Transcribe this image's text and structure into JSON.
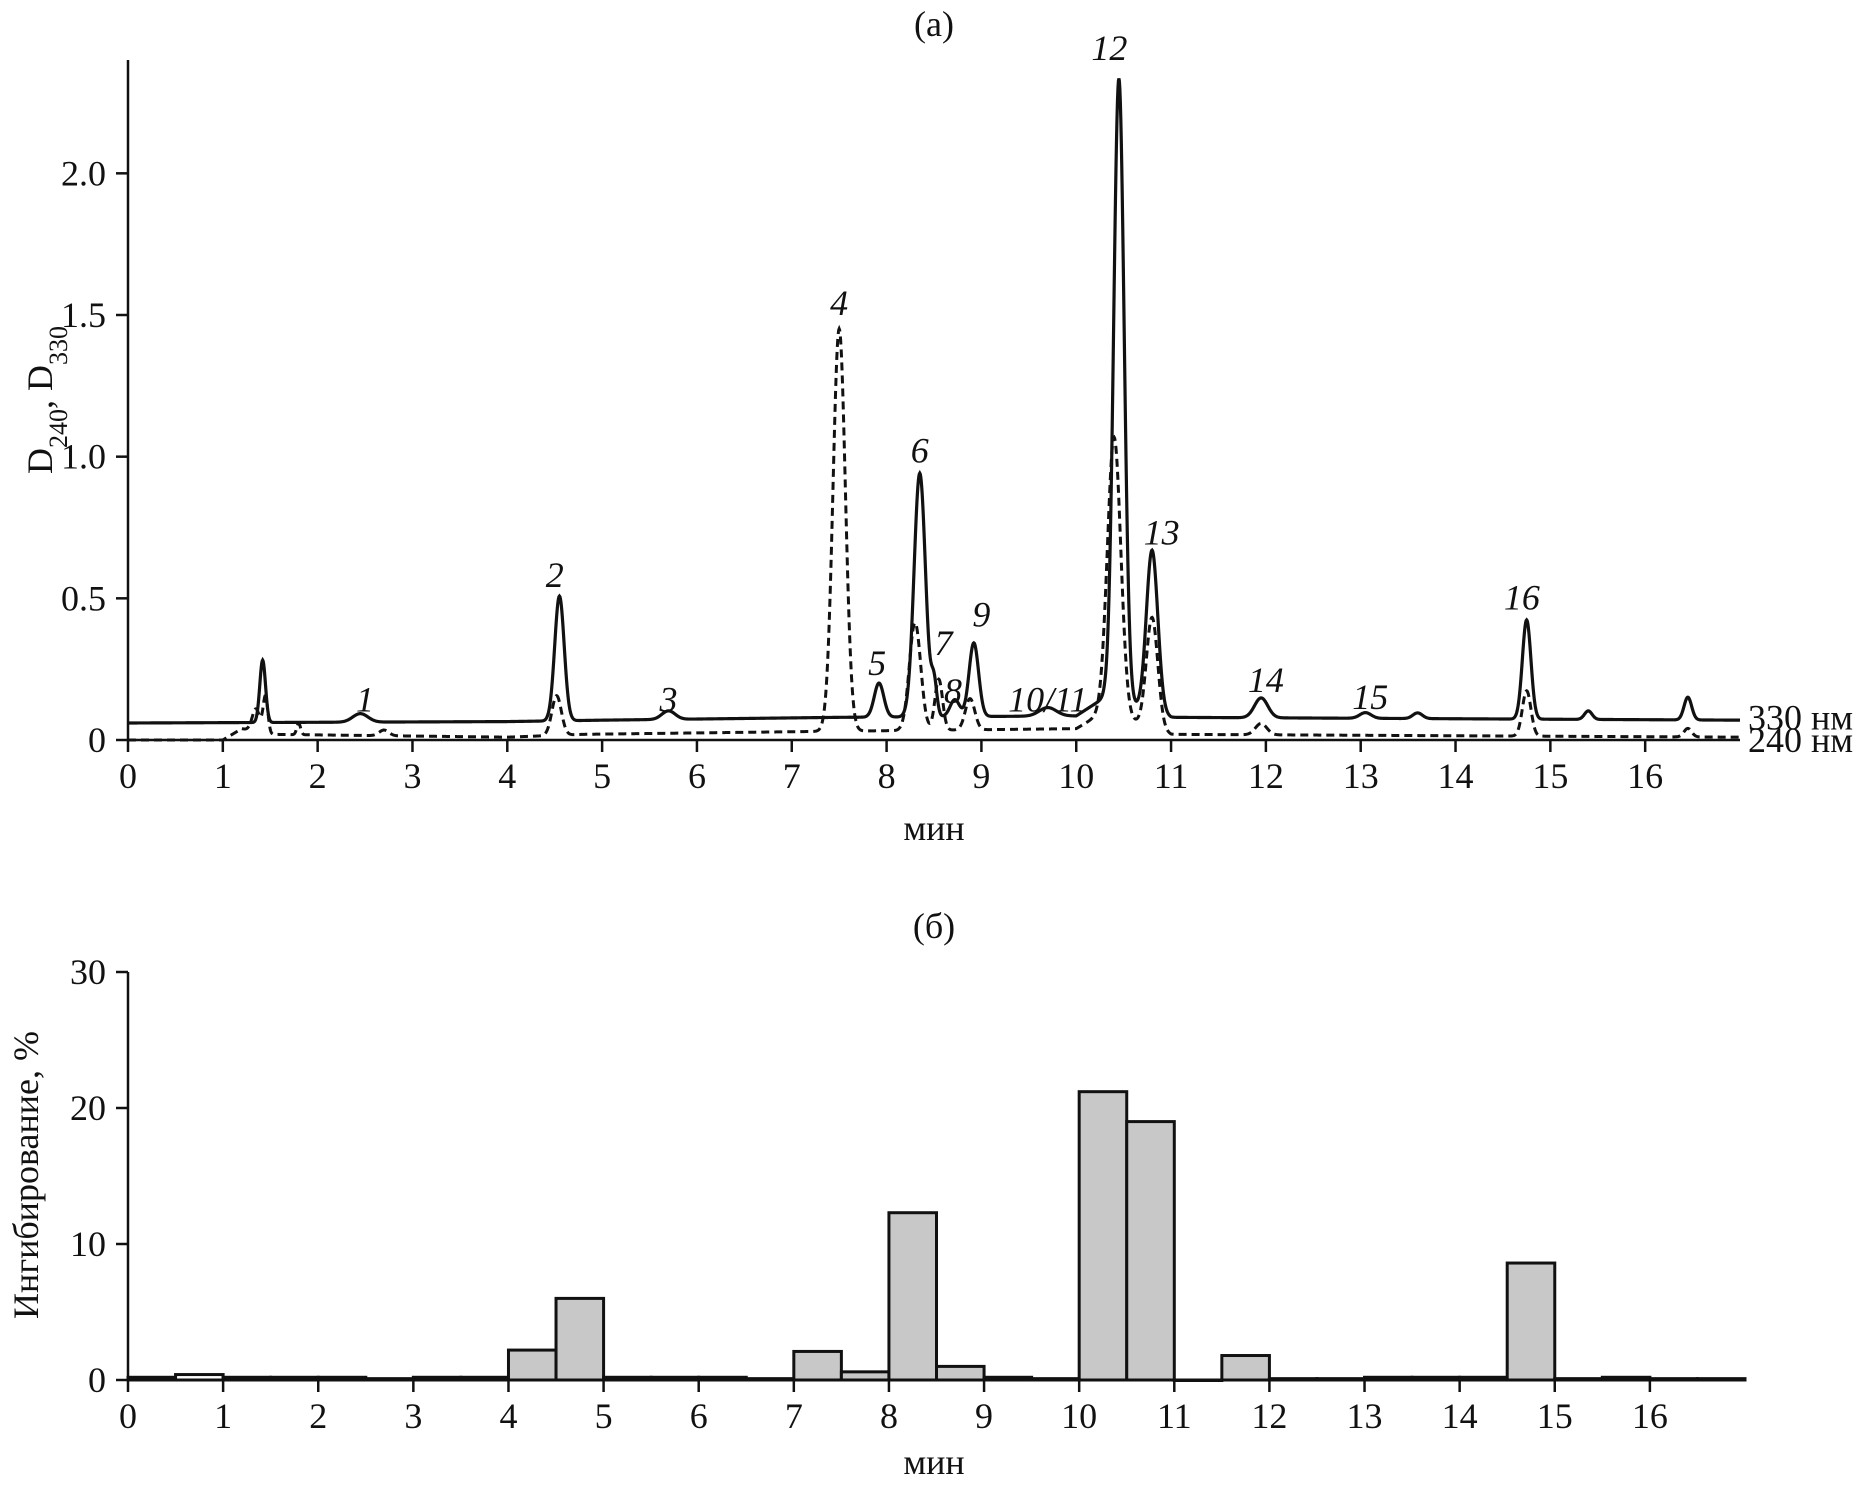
{
  "chart_data": [
    {
      "type": "line",
      "title": "(a)",
      "xlabel": "мин",
      "ylabel": {
        "base": "D",
        "sub1": "240",
        "sep": ", ",
        "base2": "D",
        "sub2": "330"
      },
      "xlim": [
        0,
        17
      ],
      "ylim": [
        0,
        2.4
      ],
      "x_ticks": [
        0,
        1,
        2,
        3,
        4,
        5,
        6,
        7,
        8,
        9,
        10,
        11,
        12,
        13,
        14,
        15,
        16
      ],
      "y_ticks": [
        0,
        0.5,
        1.0,
        1.5,
        2.0
      ],
      "y_tick_labels": [
        "0",
        "0.5",
        "1.0",
        "1.5",
        "2.0"
      ],
      "grid": false,
      "series": [
        {
          "name": "330 нм",
          "style": "solid",
          "color": "#111111",
          "baseline": [
            [
              0,
              0.06
            ],
            [
              4,
              0.065
            ],
            [
              5,
              0.07
            ],
            [
              7.5,
              0.08
            ],
            [
              10,
              0.085
            ],
            [
              10.3,
              0.15
            ],
            [
              11,
              0.08
            ],
            [
              17,
              0.07
            ]
          ],
          "peaks": [
            {
              "x": 1.42,
              "h": 0.22,
              "w": 0.03
            },
            {
              "x": 2.45,
              "h": 0.03,
              "w": 0.08
            },
            {
              "x": 4.55,
              "h": 0.44,
              "w": 0.05
            },
            {
              "x": 5.7,
              "h": 0.03,
              "w": 0.07
            },
            {
              "x": 7.92,
              "h": 0.12,
              "w": 0.05
            },
            {
              "x": 8.35,
              "h": 0.86,
              "w": 0.06
            },
            {
              "x": 8.5,
              "h": 0.12,
              "w": 0.03
            },
            {
              "x": 8.72,
              "h": 0.06,
              "w": 0.05
            },
            {
              "x": 8.92,
              "h": 0.26,
              "w": 0.05
            },
            {
              "x": 9.7,
              "h": 0.03,
              "w": 0.09
            },
            {
              "x": 10.45,
              "h": 2.2,
              "w": 0.055
            },
            {
              "x": 10.8,
              "h": 0.57,
              "w": 0.06
            },
            {
              "x": 11.95,
              "h": 0.07,
              "w": 0.07
            },
            {
              "x": 13.05,
              "h": 0.02,
              "w": 0.06
            },
            {
              "x": 13.6,
              "h": 0.02,
              "w": 0.05
            },
            {
              "x": 14.75,
              "h": 0.35,
              "w": 0.045
            },
            {
              "x": 15.4,
              "h": 0.03,
              "w": 0.04
            },
            {
              "x": 16.45,
              "h": 0.08,
              "w": 0.04
            }
          ]
        },
        {
          "name": "240 нм",
          "style": "dashed",
          "color": "#111111",
          "baseline": [
            [
              0,
              0.0
            ],
            [
              1.0,
              0.0
            ],
            [
              1.2,
              0.04
            ],
            [
              1.5,
              0.02
            ],
            [
              4,
              0.01
            ],
            [
              4.8,
              0.02
            ],
            [
              7.2,
              0.03
            ],
            [
              10,
              0.04
            ],
            [
              10.3,
              0.1
            ],
            [
              11,
              0.02
            ],
            [
              17,
              0.01
            ]
          ],
          "peaks": [
            {
              "x": 1.35,
              "h": 0.08,
              "w": 0.04
            },
            {
              "x": 1.45,
              "h": 0.13,
              "w": 0.025
            },
            {
              "x": 1.8,
              "h": 0.04,
              "w": 0.02
            },
            {
              "x": 2.7,
              "h": 0.02,
              "w": 0.05
            },
            {
              "x": 4.52,
              "h": 0.14,
              "w": 0.05
            },
            {
              "x": 7.5,
              "h": 1.42,
              "w": 0.065
            },
            {
              "x": 8.3,
              "h": 0.38,
              "w": 0.06
            },
            {
              "x": 8.55,
              "h": 0.18,
              "w": 0.04
            },
            {
              "x": 8.88,
              "h": 0.11,
              "w": 0.05
            },
            {
              "x": 10.4,
              "h": 0.98,
              "w": 0.07
            },
            {
              "x": 10.8,
              "h": 0.39,
              "w": 0.06
            },
            {
              "x": 11.95,
              "h": 0.04,
              "w": 0.06
            },
            {
              "x": 14.75,
              "h": 0.16,
              "w": 0.045
            },
            {
              "x": 16.45,
              "h": 0.03,
              "w": 0.04
            }
          ]
        }
      ],
      "peak_labels": [
        {
          "text": "1",
          "x": 2.5,
          "y": 0.1
        },
        {
          "text": "2",
          "x": 4.5,
          "y": 0.54
        },
        {
          "text": "3",
          "x": 5.7,
          "y": 0.1
        },
        {
          "text": "4",
          "x": 7.5,
          "y": 1.5
        },
        {
          "text": "5",
          "x": 7.9,
          "y": 0.23
        },
        {
          "text": "6",
          "x": 8.35,
          "y": 0.98
        },
        {
          "text": "7",
          "x": 8.6,
          "y": 0.3
        },
        {
          "text": "8",
          "x": 8.7,
          "y": 0.13
        },
        {
          "text": "9",
          "x": 9.0,
          "y": 0.4
        },
        {
          "text": "10/11",
          "x": 9.7,
          "y": 0.1
        },
        {
          "text": "12",
          "x": 10.35,
          "y": 2.4
        },
        {
          "text": "13",
          "x": 10.9,
          "y": 0.69
        },
        {
          "text": "14",
          "x": 12.0,
          "y": 0.17
        },
        {
          "text": "15",
          "x": 13.1,
          "y": 0.11
        },
        {
          "text": "16",
          "x": 14.7,
          "y": 0.46
        }
      ],
      "trace_labels": [
        {
          "text": "330 нм",
          "y": 0.08
        },
        {
          "text": "240 нм",
          "y": 0.0
        }
      ]
    },
    {
      "type": "bar",
      "title": "(б)",
      "xlabel": "мин",
      "ylabel": "Ингибирование, %",
      "xlim": [
        0,
        17
      ],
      "ylim": [
        0,
        30
      ],
      "x_ticks": [
        0,
        1,
        2,
        3,
        4,
        5,
        6,
        7,
        8,
        9,
        10,
        11,
        12,
        13,
        14,
        15,
        16
      ],
      "y_ticks": [
        0,
        10,
        20,
        30
      ],
      "grid": false,
      "bin_width": 0.5,
      "bin_starts": [
        0,
        0.5,
        1.0,
        1.5,
        2.0,
        2.5,
        3.0,
        3.5,
        4.0,
        4.5,
        5.0,
        5.5,
        6.0,
        6.5,
        7.0,
        7.5,
        8.0,
        8.5,
        9.0,
        9.5,
        10.0,
        10.5,
        11.0,
        11.5,
        12.0,
        12.5,
        13.0,
        13.5,
        14.0,
        14.5,
        15.0,
        15.5,
        16.0,
        16.5
      ],
      "values": [
        0.2,
        0.4,
        0.2,
        0.2,
        0.2,
        0.1,
        0.2,
        0.2,
        2.2,
        6.0,
        0.2,
        0.2,
        0.2,
        0.1,
        2.1,
        0.6,
        12.3,
        1.0,
        0.2,
        0.1,
        21.2,
        19.0,
        0.0,
        1.8,
        0.1,
        0.1,
        0.2,
        0.2,
        0.2,
        8.6,
        0.1,
        0.2,
        0.1,
        0.1
      ],
      "fill_gray": [
        false,
        false,
        false,
        false,
        false,
        false,
        false,
        false,
        true,
        true,
        false,
        false,
        false,
        false,
        true,
        true,
        true,
        true,
        false,
        false,
        true,
        true,
        false,
        true,
        false,
        false,
        false,
        false,
        false,
        true,
        false,
        false,
        false,
        false
      ],
      "colors": {
        "bar_gray": "#c8c8c8",
        "bar_white": "#ffffff",
        "stroke": "#111111"
      }
    }
  ]
}
